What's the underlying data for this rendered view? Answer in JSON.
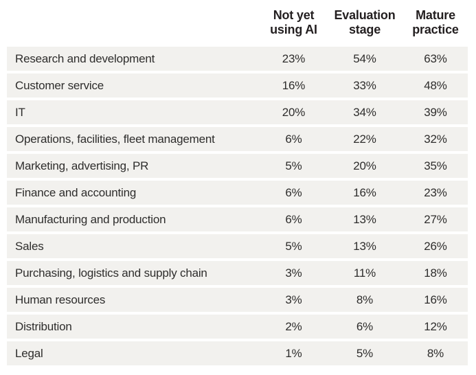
{
  "colors": {
    "row_background": "#f2f1ee",
    "page_background": "#ffffff",
    "header_text": "#231f20",
    "body_text": "#2e2d2c"
  },
  "header": {
    "cols": [
      {
        "line1": "Not yet",
        "line2": "using AI"
      },
      {
        "line1": "Evaluation",
        "line2": "stage"
      },
      {
        "line1": "Mature",
        "line2": "practice"
      }
    ]
  },
  "rows": [
    {
      "label": "Research and development",
      "values": [
        "23%",
        "54%",
        "63%"
      ]
    },
    {
      "label": "Customer service",
      "values": [
        "16%",
        "33%",
        "48%"
      ]
    },
    {
      "label": "IT",
      "values": [
        "20%",
        "34%",
        "39%"
      ]
    },
    {
      "label": "Operations, facilities, fleet management",
      "values": [
        "6%",
        "22%",
        "32%"
      ]
    },
    {
      "label": "Marketing, advertising, PR",
      "values": [
        "5%",
        "20%",
        "35%"
      ]
    },
    {
      "label": "Finance and accounting",
      "values": [
        "6%",
        "16%",
        "23%"
      ]
    },
    {
      "label": "Manufacturing and production",
      "values": [
        "6%",
        "13%",
        "27%"
      ]
    },
    {
      "label": "Sales",
      "values": [
        "5%",
        "13%",
        "26%"
      ]
    },
    {
      "label": "Purchasing, logistics and supply chain",
      "values": [
        "3%",
        "11%",
        "18%"
      ]
    },
    {
      "label": "Human resources",
      "values": [
        "3%",
        "8%",
        "16%"
      ]
    },
    {
      "label": "Distribution",
      "values": [
        "2%",
        "6%",
        "12%"
      ]
    },
    {
      "label": "Legal",
      "values": [
        "1%",
        "5%",
        "8%"
      ]
    }
  ],
  "chart_data": {
    "type": "table",
    "title": "",
    "unit": "%",
    "columns": [
      "Not yet using AI",
      "Evaluation stage",
      "Mature practice"
    ],
    "categories": [
      "Research and development",
      "Customer service",
      "IT",
      "Operations, facilities, fleet management",
      "Marketing, advertising, PR",
      "Finance and accounting",
      "Manufacturing and production",
      "Sales",
      "Purchasing, logistics and supply chain",
      "Human resources",
      "Distribution",
      "Legal"
    ],
    "series": [
      {
        "name": "Not yet using AI",
        "values": [
          23,
          16,
          20,
          6,
          5,
          6,
          6,
          5,
          3,
          3,
          2,
          1
        ]
      },
      {
        "name": "Evaluation stage",
        "values": [
          54,
          33,
          34,
          22,
          20,
          16,
          13,
          13,
          11,
          8,
          6,
          5
        ]
      },
      {
        "name": "Mature practice",
        "values": [
          63,
          48,
          39,
          32,
          35,
          23,
          27,
          26,
          18,
          16,
          12,
          8
        ]
      }
    ]
  }
}
